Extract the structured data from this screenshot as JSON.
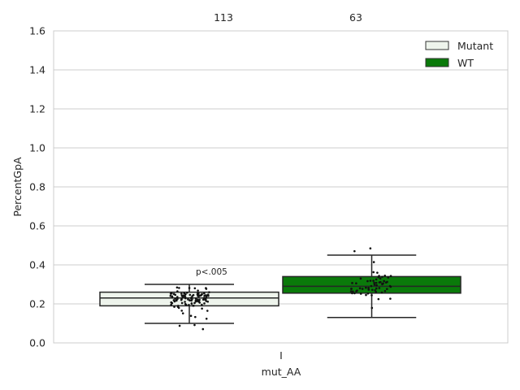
{
  "chart_data": {
    "type": "box",
    "xlabel": "mut_AA",
    "ylabel": "PercentGpA",
    "categories": [
      "I"
    ],
    "ylim": [
      0,
      1.6
    ],
    "yticks": [
      "0.0",
      "0.2",
      "0.4",
      "0.6",
      "0.8",
      "1.0",
      "1.2",
      "1.4",
      "1.6"
    ],
    "grid": true,
    "legend_position": "top-right",
    "series": [
      {
        "name": "Mutant",
        "color": "#eef4ec",
        "count_label": "113",
        "whisker_low": 0.1,
        "q1": 0.19,
        "median": 0.23,
        "q3": 0.26,
        "whisker_high": 0.3
      },
      {
        "name": "WT",
        "color": "#0a7a0a",
        "count_label": "63",
        "whisker_low": 0.13,
        "q1": 0.255,
        "median": 0.29,
        "q3": 0.34,
        "whisker_high": 0.45
      }
    ],
    "annotation": "p<.005"
  }
}
